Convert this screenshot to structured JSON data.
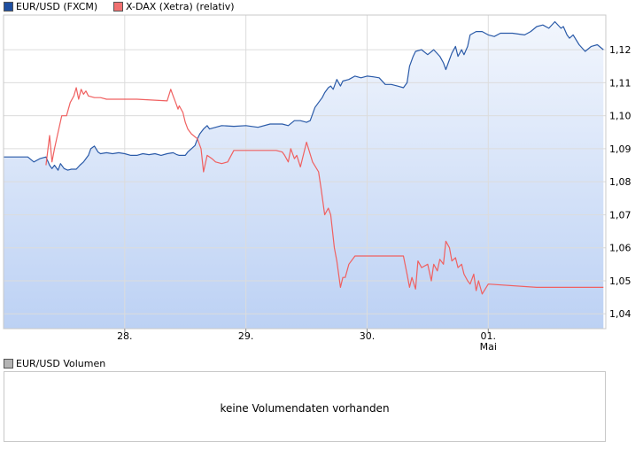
{
  "legend": {
    "series1_label": "EUR/USD (FXCM)",
    "series2_label": "X-DAX (Xetra) (relativ)",
    "volume_label": "EUR/USD Volumen"
  },
  "colors": {
    "series1": "#2a5aa8",
    "series2": "#f06060",
    "series1_swatch": "#1f4fa0",
    "series2_swatch": "#f07070",
    "volume_swatch": "#b4b4b4",
    "area_top": "#f2f6fd",
    "area_bottom": "#bcd1f4",
    "grid": "#dcdcdc"
  },
  "volume_message": "keine Volumendaten vorhanden",
  "chart_data": {
    "type": "line",
    "grid": true,
    "legend_position": "top-left",
    "ylim": [
      1.0355,
      1.1305
    ],
    "y_ticks": [
      "1,04",
      "1,05",
      "1,06",
      "1,07",
      "1,08",
      "1,09",
      "1,10",
      "1,11",
      "1,12"
    ],
    "x_ticks": [
      {
        "label": "28.",
        "sub": "",
        "x": 1
      },
      {
        "label": "29.",
        "sub": "",
        "x": 2
      },
      {
        "label": "30.",
        "sub": "",
        "x": 3
      },
      {
        "label": "01.",
        "sub": "Mai",
        "x": 4
      }
    ],
    "xlim": [
      0,
      4.97
    ],
    "series": [
      {
        "name": "EUR/USD (FXCM)",
        "area": true,
        "x": [
          0.0,
          0.2,
          0.25,
          0.3,
          0.35,
          0.38,
          0.4,
          0.42,
          0.45,
          0.47,
          0.5,
          0.53,
          0.56,
          0.6,
          0.63,
          0.66,
          0.68,
          0.7,
          0.72,
          0.75,
          0.78,
          0.8,
          0.85,
          0.9,
          0.95,
          1.0,
          1.05,
          1.1,
          1.15,
          1.2,
          1.25,
          1.3,
          1.35,
          1.4,
          1.43,
          1.45,
          1.5,
          1.52,
          1.55,
          1.58,
          1.6,
          1.62,
          1.65,
          1.68,
          1.7,
          1.8,
          1.9,
          2.0,
          2.1,
          2.2,
          2.3,
          2.35,
          2.4,
          2.45,
          2.5,
          2.53,
          2.55,
          2.57,
          2.6,
          2.63,
          2.65,
          2.68,
          2.7,
          2.72,
          2.75,
          2.78,
          2.8,
          2.85,
          2.9,
          2.95,
          3.0,
          3.05,
          3.1,
          3.15,
          3.2,
          3.25,
          3.3,
          3.33,
          3.35,
          3.38,
          3.4,
          3.45,
          3.5,
          3.55,
          3.6,
          3.63,
          3.65,
          3.7,
          3.73,
          3.75,
          3.78,
          3.8,
          3.83,
          3.85,
          3.9,
          3.95,
          4.0,
          4.05,
          4.1,
          4.2,
          4.3,
          4.35,
          4.4,
          4.45,
          4.5,
          4.55,
          4.6,
          4.62,
          4.65,
          4.67,
          4.7,
          4.75,
          4.8,
          4.85,
          4.9,
          4.95
        ],
        "values": [
          1.0875,
          1.0875,
          1.086,
          1.087,
          1.0875,
          1.085,
          1.084,
          1.085,
          1.0835,
          1.0855,
          1.084,
          1.0835,
          1.0838,
          1.0838,
          1.085,
          1.086,
          1.087,
          1.088,
          1.09,
          1.0908,
          1.089,
          1.0885,
          1.0888,
          1.0885,
          1.0888,
          1.0885,
          1.088,
          1.088,
          1.0885,
          1.0882,
          1.0885,
          1.088,
          1.0885,
          1.0888,
          1.0882,
          1.088,
          1.088,
          1.089,
          1.09,
          1.091,
          1.093,
          1.0945,
          1.096,
          1.097,
          1.096,
          1.097,
          1.0968,
          1.097,
          1.0965,
          1.0975,
          1.0975,
          1.097,
          1.0985,
          1.0985,
          1.098,
          1.0985,
          1.1005,
          1.1025,
          1.104,
          1.1055,
          1.107,
          1.1085,
          1.109,
          1.108,
          1.111,
          1.109,
          1.1105,
          1.111,
          1.112,
          1.1115,
          1.112,
          1.1118,
          1.1115,
          1.1095,
          1.1095,
          1.109,
          1.1085,
          1.11,
          1.115,
          1.118,
          1.1195,
          1.12,
          1.1185,
          1.12,
          1.118,
          1.116,
          1.114,
          1.119,
          1.121,
          1.118,
          1.12,
          1.1185,
          1.121,
          1.1245,
          1.1255,
          1.1255,
          1.1245,
          1.124,
          1.125,
          1.125,
          1.1245,
          1.1255,
          1.127,
          1.1275,
          1.1265,
          1.1285,
          1.1265,
          1.127,
          1.1245,
          1.1235,
          1.1245,
          1.1215,
          1.1195,
          1.121,
          1.1215,
          1.12
        ]
      },
      {
        "name": "X-DAX (Xetra) (relativ)",
        "area": false,
        "x": [
          0.35,
          0.38,
          0.4,
          0.42,
          0.45,
          0.48,
          0.52,
          0.55,
          0.58,
          0.6,
          0.62,
          0.64,
          0.66,
          0.68,
          0.7,
          0.75,
          0.8,
          0.85,
          1.1,
          1.35,
          1.38,
          1.4,
          1.42,
          1.44,
          1.45,
          1.48,
          1.5,
          1.52,
          1.55,
          1.6,
          1.63,
          1.65,
          1.68,
          1.72,
          1.75,
          1.8,
          1.85,
          1.9,
          2.25,
          2.3,
          2.32,
          2.35,
          2.37,
          2.4,
          2.42,
          2.45,
          2.5,
          2.55,
          2.6,
          2.62,
          2.65,
          2.68,
          2.7,
          2.73,
          2.75,
          2.78,
          2.8,
          2.82,
          2.85,
          2.9,
          3.3,
          3.33,
          3.35,
          3.37,
          3.4,
          3.42,
          3.45,
          3.5,
          3.53,
          3.55,
          3.58,
          3.6,
          3.63,
          3.65,
          3.68,
          3.7,
          3.73,
          3.75,
          3.78,
          3.8,
          3.83,
          3.85,
          3.88,
          3.9,
          3.92,
          3.95,
          4.0,
          4.4,
          4.95
        ],
        "values": [
          1.085,
          1.094,
          1.086,
          1.09,
          1.095,
          1.1,
          1.1,
          1.104,
          1.106,
          1.1085,
          1.105,
          1.108,
          1.1065,
          1.1075,
          1.106,
          1.1055,
          1.1055,
          1.105,
          1.105,
          1.1045,
          1.108,
          1.106,
          1.104,
          1.102,
          1.103,
          1.101,
          1.098,
          1.096,
          1.0945,
          1.093,
          1.09,
          1.083,
          1.088,
          1.087,
          1.086,
          1.0855,
          1.086,
          1.0895,
          1.0895,
          1.089,
          1.088,
          1.086,
          1.09,
          1.087,
          1.088,
          1.0845,
          1.092,
          1.086,
          1.083,
          1.078,
          1.07,
          1.072,
          1.07,
          1.06,
          1.056,
          1.048,
          1.051,
          1.051,
          1.055,
          1.0575,
          1.0575,
          1.052,
          1.048,
          1.051,
          1.0475,
          1.056,
          1.054,
          1.055,
          1.05,
          1.055,
          1.053,
          1.0565,
          1.055,
          1.062,
          1.06,
          1.056,
          1.057,
          1.054,
          1.055,
          1.052,
          1.05,
          1.049,
          1.052,
          1.047,
          1.05,
          1.046,
          1.049,
          1.048,
          1.048
        ]
      }
    ]
  }
}
